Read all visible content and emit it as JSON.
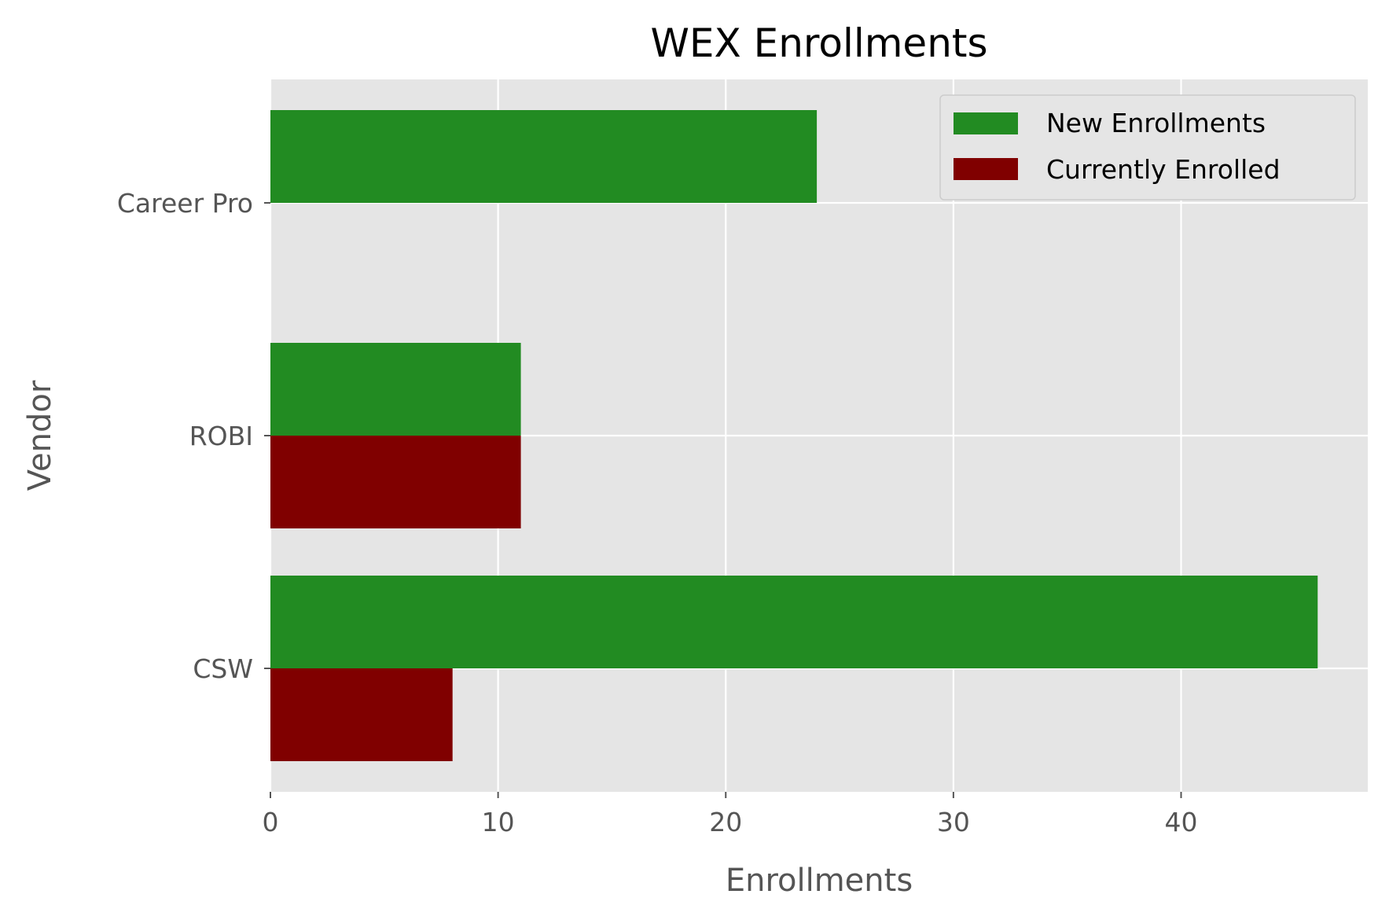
{
  "chart_data": {
    "type": "bar",
    "orientation": "horizontal",
    "title": "WEX Enrollments",
    "xlabel": "Enrollments",
    "ylabel": "Vendor",
    "categories": [
      "CSW",
      "ROBI",
      "Career Pro"
    ],
    "series": [
      {
        "name": "New Enrollments",
        "values": [
          46,
          11,
          24
        ],
        "color": "#228b22"
      },
      {
        "name": "Currently Enrolled",
        "values": [
          8,
          11,
          0
        ],
        "color": "#800000"
      }
    ],
    "xlim": [
      0,
      48.2
    ],
    "xticks": [
      0,
      10,
      20,
      30,
      40
    ],
    "grid": true,
    "legend_position": "top-right",
    "background_color": "#e5e5e5",
    "grid_color": "#ffffff"
  }
}
